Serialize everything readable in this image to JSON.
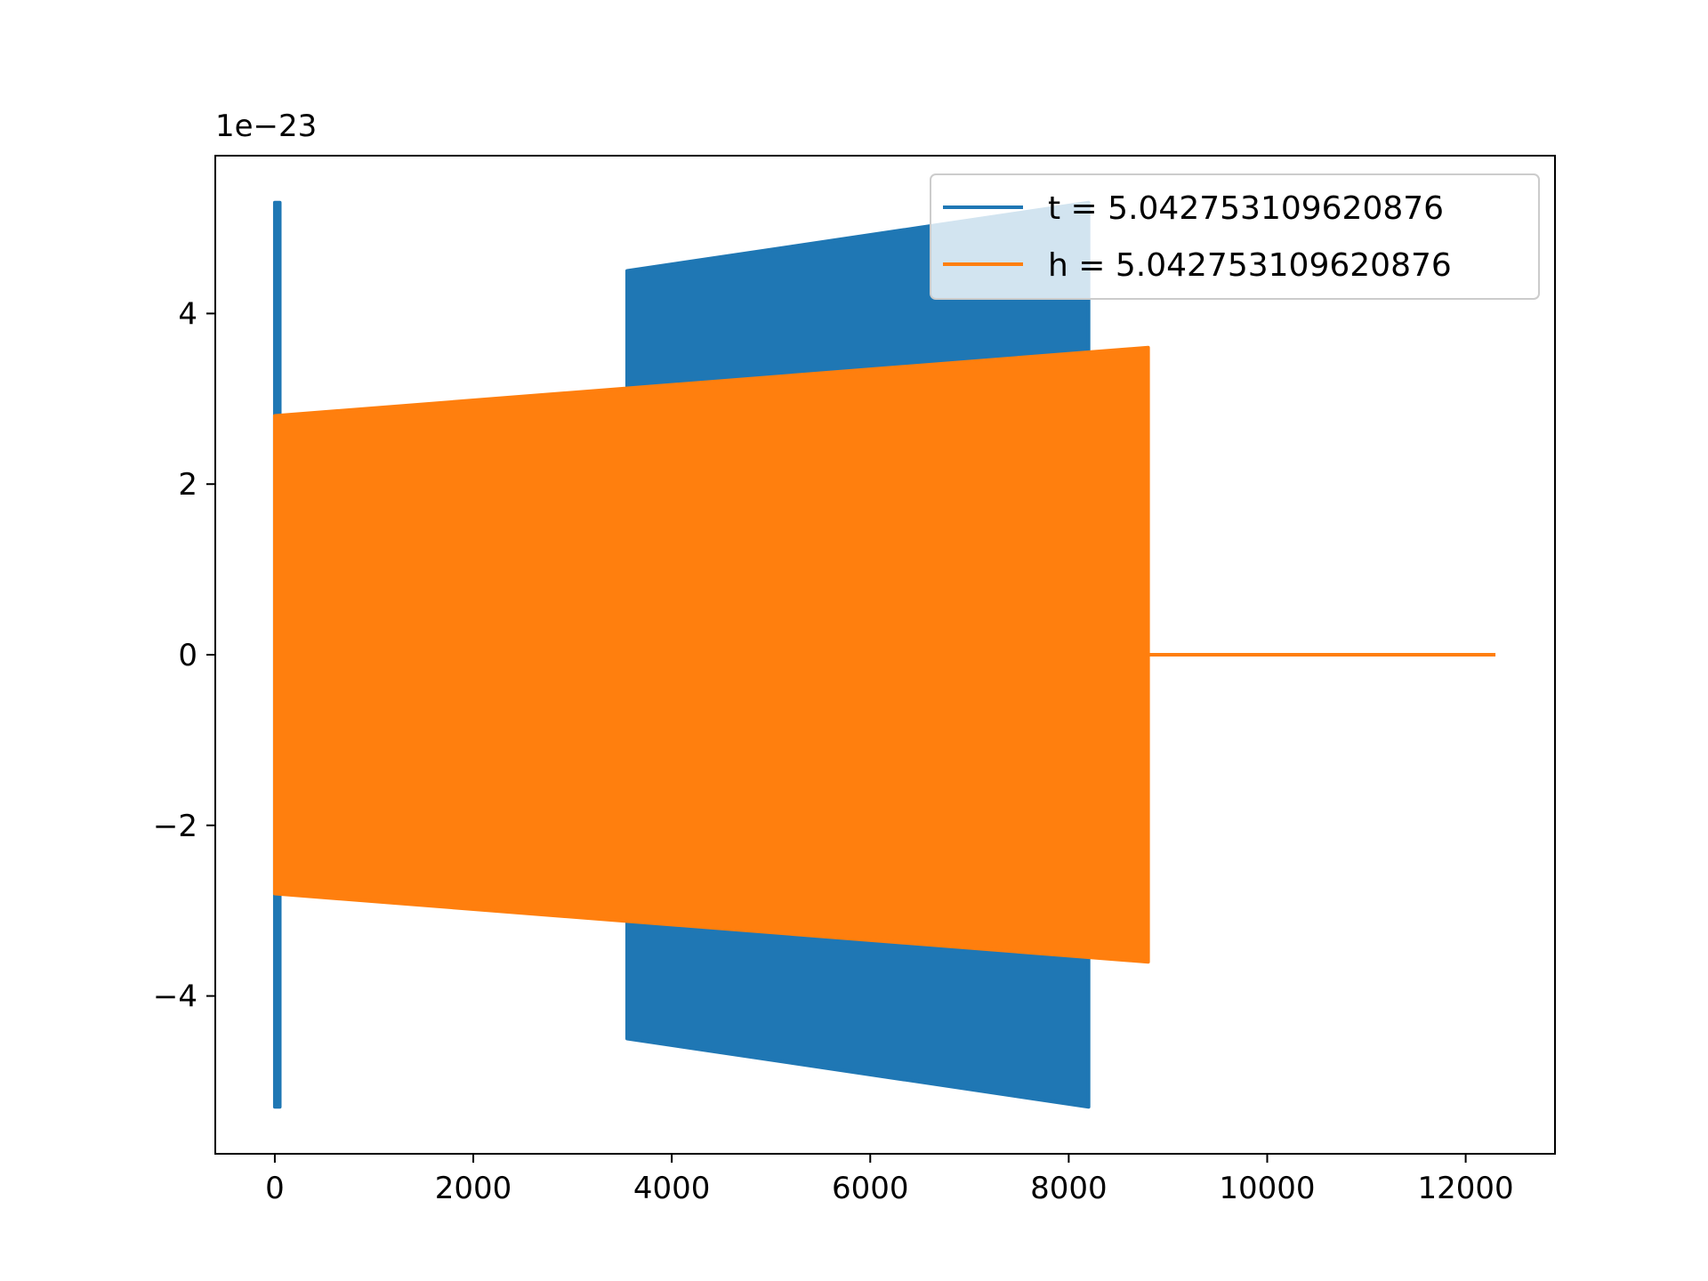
{
  "chart_data": {
    "type": "line",
    "title": "",
    "xlabel": "",
    "ylabel": "",
    "y_offset_label": "1e−23",
    "xlim": [
      -600,
      12900
    ],
    "ylim": [
      -5.85,
      5.85
    ],
    "x_ticks": [
      0,
      2000,
      4000,
      6000,
      8000,
      10000,
      12000
    ],
    "x_tick_labels": [
      "0",
      "2000",
      "4000",
      "6000",
      "8000",
      "10000",
      "12000"
    ],
    "y_ticks": [
      4,
      2,
      0,
      -2,
      -4
    ],
    "y_tick_labels": [
      "4",
      "2",
      "0",
      "−2",
      "−4"
    ],
    "grid": false,
    "legend_position": "top-right",
    "series": [
      {
        "name": "t = 5.042753109620876",
        "color": "#1f77b4",
        "segments": [
          {
            "x_start": 0,
            "x_end": 50,
            "amp_start": 5.3,
            "amp_end": 5.3
          },
          {
            "x_start": 3550,
            "x_end": 8200,
            "amp_start": 4.5,
            "amp_end": 5.3
          }
        ]
      },
      {
        "name": "h = 5.042753109620876",
        "color": "#ff7f0e",
        "segments": [
          {
            "x_start": 0,
            "x_end": 8800,
            "amp_start": 2.8,
            "amp_end": 3.6
          }
        ],
        "flat_tail": {
          "x_start": 8800,
          "x_end": 12300,
          "value": 0
        }
      }
    ]
  }
}
